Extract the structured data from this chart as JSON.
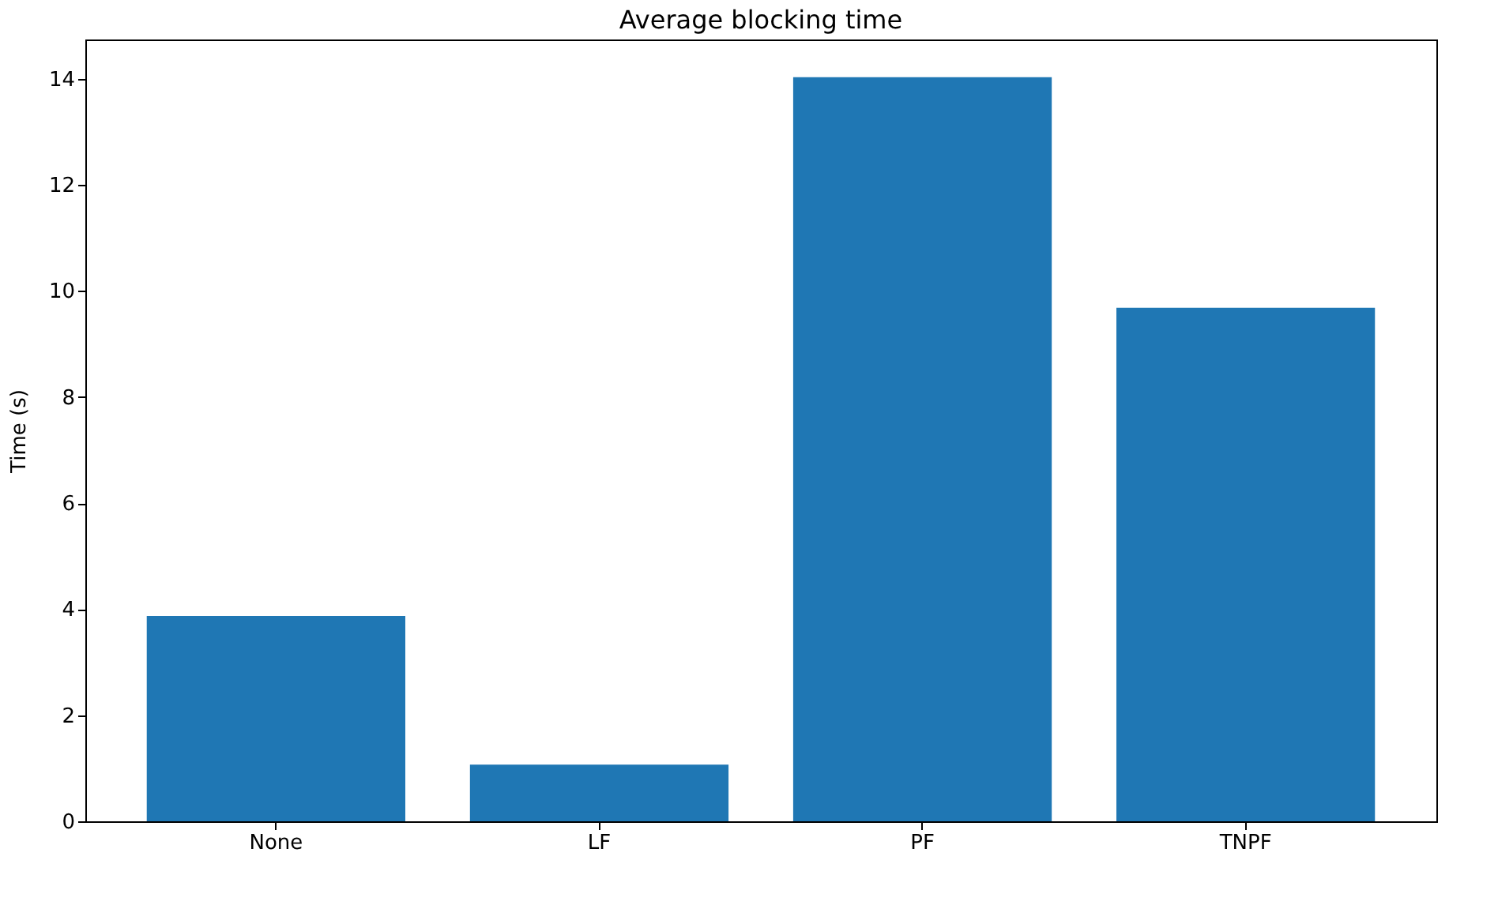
{
  "chart_data": {
    "type": "bar",
    "title": "Average blocking time",
    "ylabel": "Time (s)",
    "categories": [
      "None",
      "LF",
      "PF",
      "TNPF"
    ],
    "values": [
      3.87,
      1.07,
      14.03,
      9.68
    ],
    "color": "#1f77b4",
    "ylim": [
      0,
      14.74
    ],
    "yticks": [
      0,
      2,
      4,
      6,
      8,
      10,
      12,
      14
    ],
    "grid": false
  }
}
